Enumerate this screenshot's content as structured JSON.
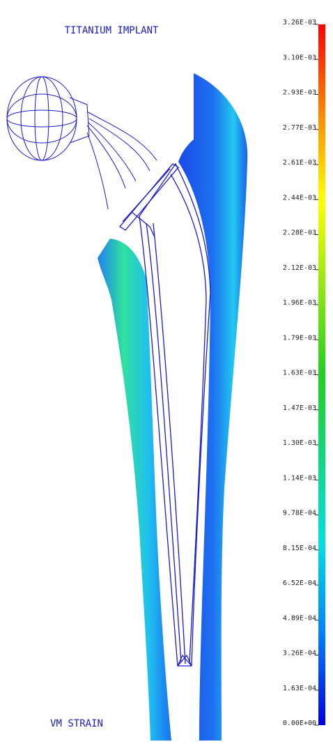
{
  "title": "TITANIUM IMPLANT",
  "footer": "VM STRAIN",
  "colorbar": {
    "labels": [
      "3.26E-03",
      "3.10E-03",
      "2.93E-03",
      "2.77E-03",
      "2.61E-03",
      "2.44E-03",
      "2.28E-03",
      "2.12E-03",
      "1.96E-03",
      "1.79E-03",
      "1.63E-03",
      "1.47E-03",
      "1.30E-03",
      "1.14E-03",
      "9.78E-04",
      "8.15E-04",
      "6.52E-04",
      "4.89E-04",
      "3.26E-04",
      "1.63E-04",
      "0.00E+00"
    ]
  }
}
